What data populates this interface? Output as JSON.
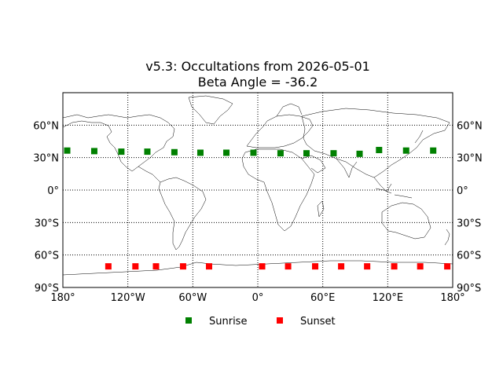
{
  "chart_data": {
    "type": "scatter",
    "title": "v5.3: Occultations from 2026-05-01",
    "subtitle": "Beta Angle = -36.2",
    "xlim": [
      -180,
      180
    ],
    "ylim": [
      -90,
      90
    ],
    "grid": "dotted",
    "legend_position": "bottom-center",
    "x_ticks": [
      {
        "value": -180,
        "label": "180°"
      },
      {
        "value": -120,
        "label": "120°W"
      },
      {
        "value": -60,
        "label": "60°W"
      },
      {
        "value": 0,
        "label": "0°"
      },
      {
        "value": 60,
        "label": "60°E"
      },
      {
        "value": 120,
        "label": "120°E"
      },
      {
        "value": 180,
        "label": "180°"
      }
    ],
    "y_ticks": [
      {
        "value": 60,
        "label": "60°N"
      },
      {
        "value": 30,
        "label": "30°N"
      },
      {
        "value": 0,
        "label": "0°"
      },
      {
        "value": -30,
        "label": "30°S"
      },
      {
        "value": -60,
        "label": "60°S"
      },
      {
        "value": -90,
        "label": "90°S"
      }
    ],
    "series": [
      {
        "name": "Sunrise",
        "color": "#008000",
        "x": [
          -176,
          -151,
          -126,
          -102,
          -77,
          -53,
          -29,
          -4,
          21,
          45,
          70,
          94,
          112,
          137,
          162
        ],
        "y": [
          36.5,
          36,
          35.5,
          35.5,
          35,
          34.5,
          34.5,
          34.5,
          34,
          34,
          34,
          33.5,
          37,
          36.5,
          36.5
        ]
      },
      {
        "name": "Sunset",
        "color": "#ff0000",
        "x": [
          -138,
          -113,
          -94,
          -69,
          -45,
          4,
          28,
          53,
          77,
          101,
          126,
          150,
          175
        ],
        "y": [
          -70.5,
          -70.5,
          -70.5,
          -70.5,
          -70.5,
          -70.5,
          -70.5,
          -70.5,
          -70.5,
          -70.5,
          -70.5,
          -70.5,
          -70.5
        ]
      }
    ]
  }
}
